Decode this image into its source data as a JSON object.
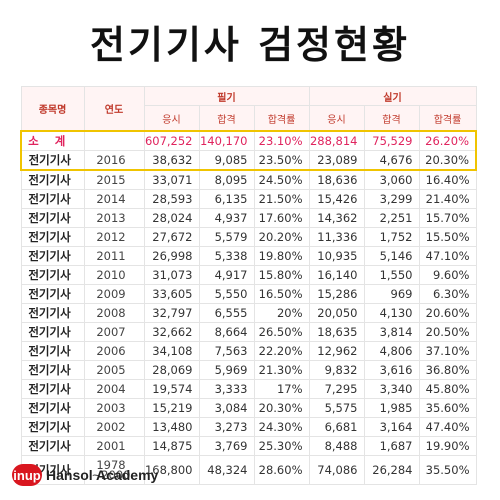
{
  "title": "전기기사 검정현황",
  "table": {
    "col_name": "종목명",
    "col_year": "연도",
    "group_written": "필기",
    "group_practical": "실기",
    "sub_applicants": "응시",
    "sub_passed": "합격",
    "sub_rate": "합격률",
    "subtotal": {
      "label": "소 계",
      "year": "",
      "w_app": "607,252",
      "w_pass": "140,170",
      "w_rate": "23.10%",
      "p_app": "288,814",
      "p_pass": "75,529",
      "p_rate": "26.20%"
    },
    "rows": [
      {
        "name": "전기기사",
        "year": "2016",
        "w_app": "38,632",
        "w_pass": "9,085",
        "w_rate": "23.50%",
        "p_app": "23,089",
        "p_pass": "4,676",
        "p_rate": "20.30%"
      },
      {
        "name": "전기기사",
        "year": "2015",
        "w_app": "33,071",
        "w_pass": "8,095",
        "w_rate": "24.50%",
        "p_app": "18,636",
        "p_pass": "3,060",
        "p_rate": "16.40%"
      },
      {
        "name": "전기기사",
        "year": "2014",
        "w_app": "28,593",
        "w_pass": "6,135",
        "w_rate": "21.50%",
        "p_app": "15,426",
        "p_pass": "3,299",
        "p_rate": "21.40%"
      },
      {
        "name": "전기기사",
        "year": "2013",
        "w_app": "28,024",
        "w_pass": "4,937",
        "w_rate": "17.60%",
        "p_app": "14,362",
        "p_pass": "2,251",
        "p_rate": "15.70%"
      },
      {
        "name": "전기기사",
        "year": "2012",
        "w_app": "27,672",
        "w_pass": "5,579",
        "w_rate": "20.20%",
        "p_app": "11,336",
        "p_pass": "1,752",
        "p_rate": "15.50%"
      },
      {
        "name": "전기기사",
        "year": "2011",
        "w_app": "26,998",
        "w_pass": "5,338",
        "w_rate": "19.80%",
        "p_app": "10,935",
        "p_pass": "5,146",
        "p_rate": "47.10%"
      },
      {
        "name": "전기기사",
        "year": "2010",
        "w_app": "31,073",
        "w_pass": "4,917",
        "w_rate": "15.80%",
        "p_app": "16,140",
        "p_pass": "1,550",
        "p_rate": "9.60%"
      },
      {
        "name": "전기기사",
        "year": "2009",
        "w_app": "33,605",
        "w_pass": "5,550",
        "w_rate": "16.50%",
        "p_app": "15,286",
        "p_pass": "969",
        "p_rate": "6.30%"
      },
      {
        "name": "전기기사",
        "year": "2008",
        "w_app": "32,797",
        "w_pass": "6,555",
        "w_rate": "20%",
        "p_app": "20,050",
        "p_pass": "4,130",
        "p_rate": "20.60%"
      },
      {
        "name": "전기기사",
        "year": "2007",
        "w_app": "32,662",
        "w_pass": "8,664",
        "w_rate": "26.50%",
        "p_app": "18,635",
        "p_pass": "3,814",
        "p_rate": "20.50%"
      },
      {
        "name": "전기기사",
        "year": "2006",
        "w_app": "34,108",
        "w_pass": "7,563",
        "w_rate": "22.20%",
        "p_app": "12,962",
        "p_pass": "4,806",
        "p_rate": "37.10%"
      },
      {
        "name": "전기기사",
        "year": "2005",
        "w_app": "28,069",
        "w_pass": "5,969",
        "w_rate": "21.30%",
        "p_app": "9,832",
        "p_pass": "3,616",
        "p_rate": "36.80%"
      },
      {
        "name": "전기기사",
        "year": "2004",
        "w_app": "19,574",
        "w_pass": "3,333",
        "w_rate": "17%",
        "p_app": "7,295",
        "p_pass": "3,340",
        "p_rate": "45.80%"
      },
      {
        "name": "전기기사",
        "year": "2003",
        "w_app": "15,219",
        "w_pass": "3,084",
        "w_rate": "20.30%",
        "p_app": "5,575",
        "p_pass": "1,985",
        "p_rate": "35.60%"
      },
      {
        "name": "전기기사",
        "year": "2002",
        "w_app": "13,480",
        "w_pass": "3,273",
        "w_rate": "24.30%",
        "p_app": "6,681",
        "p_pass": "3,164",
        "p_rate": "47.40%"
      },
      {
        "name": "전기기사",
        "year": "2001",
        "w_app": "14,875",
        "w_pass": "3,769",
        "w_rate": "25.30%",
        "p_app": "8,488",
        "p_pass": "1,687",
        "p_rate": "19.90%"
      },
      {
        "name": "전기기사",
        "year": "1978\n~2000",
        "w_app": "168,800",
        "w_pass": "48,324",
        "w_rate": "28.60%",
        "p_app": "74,086",
        "p_pass": "26,284",
        "p_rate": "35.50%"
      }
    ]
  },
  "footer": {
    "logo_text": "inup",
    "brand": "Hansol Academy"
  },
  "colors": {
    "accent": "#d9161f",
    "highlight_border": "#f0c400",
    "subtotal_text": "#e0245e",
    "header_text": "#c0392b",
    "header_bg": "#fff4f4"
  }
}
